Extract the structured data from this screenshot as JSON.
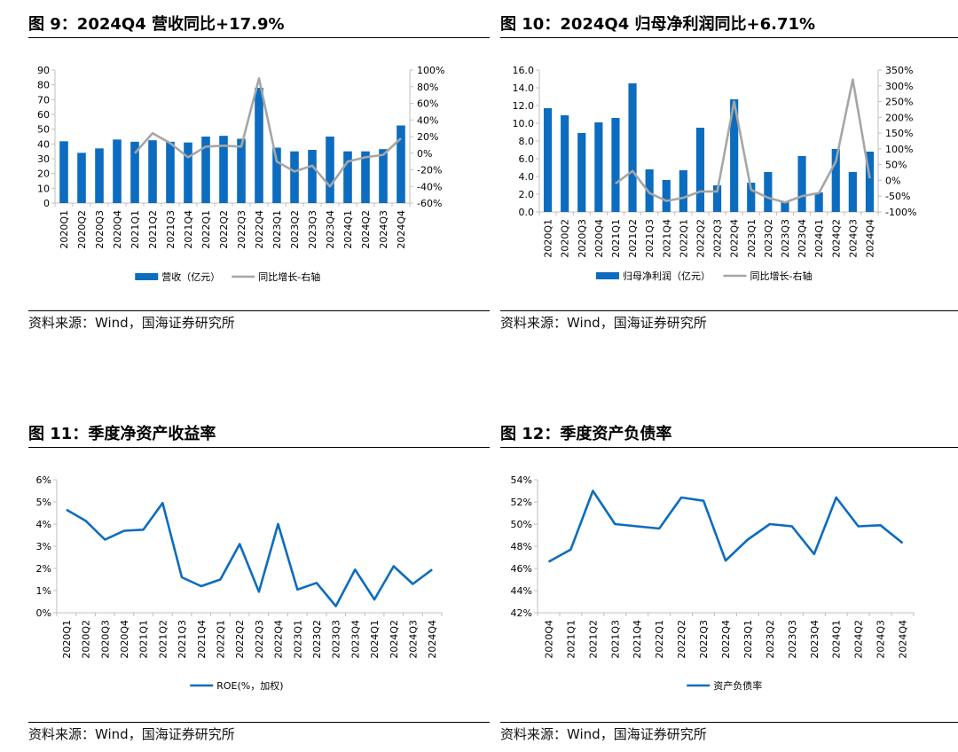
{
  "charts": [
    {
      "title": "图 9：2024Q4 营收同比+17.9%",
      "source": "资料来源：Wind，国海证券研究所",
      "chart_data": {
        "type": "bar",
        "categories": [
          "2020Q1",
          "2020Q2",
          "2020Q3",
          "2020Q4",
          "2021Q1",
          "2021Q2",
          "2021Q3",
          "2021Q4",
          "2022Q1",
          "2022Q2",
          "2022Q3",
          "2022Q4",
          "2023Q1",
          "2023Q2",
          "2023Q3",
          "2023Q4",
          "2024Q1",
          "2024Q2",
          "2024Q3",
          "2024Q4"
        ],
        "series": [
          {
            "name": "营收（亿元）",
            "type": "bar",
            "axis": "left",
            "values": [
              41.8,
              34,
              37,
              43,
              41.5,
              42.5,
              41.5,
              41,
              45,
              45.5,
              43.5,
              78,
              37.5,
              35,
              36,
              45,
              35,
              35,
              36.5,
              52.5
            ]
          },
          {
            "name": "同比增长-右轴",
            "type": "line",
            "axis": "right",
            "values": [
              null,
              null,
              null,
              null,
              0,
              24,
              12,
              -5,
              8,
              9,
              8,
              90,
              -10,
              -22,
              -15,
              -40,
              -10,
              -5,
              -2,
              17.9
            ]
          }
        ],
        "yleft": {
          "min": 0,
          "max": 90,
          "step": 10,
          "ticks": [
            "0",
            "10",
            "20",
            "30",
            "40",
            "50",
            "60",
            "70",
            "80",
            "90"
          ]
        },
        "yright": {
          "min": -60,
          "max": 100,
          "step": 20,
          "ticks": [
            "-60%",
            "-40%",
            "-20%",
            "0%",
            "20%",
            "40%",
            "60%",
            "80%",
            "100%"
          ]
        },
        "legend": "bottom"
      }
    },
    {
      "title": "图 10：2024Q4 归母净利润同比+6.71%",
      "source": "资料来源：Wind，国海证券研究所",
      "chart_data": {
        "type": "bar",
        "categories": [
          "2020Q1",
          "2020Q2",
          "2020Q3",
          "2020Q4",
          "2021Q1",
          "2021Q2",
          "2021Q3",
          "2021Q4",
          "2022Q1",
          "2022Q2",
          "2022Q3",
          "2022Q4",
          "2023Q1",
          "2023Q2",
          "2023Q3",
          "2023Q4",
          "2024Q1",
          "2024Q2",
          "2024Q3",
          "2024Q4"
        ],
        "series": [
          {
            "name": "归母净利润（亿元）",
            "type": "bar",
            "axis": "left",
            "values": [
              11.7,
              10.9,
              8.9,
              10.1,
              10.6,
              14.5,
              4.8,
              3.6,
              4.7,
              9.5,
              3,
              12.7,
              3.3,
              4.5,
              1.1,
              6.3,
              2.2,
              7.1,
              4.5,
              6.8
            ]
          },
          {
            "name": "同比增长-右轴",
            "type": "line",
            "axis": "right",
            "values": [
              null,
              null,
              null,
              null,
              -10,
              30,
              -40,
              -65,
              -55,
              -35,
              -35,
              250,
              -30,
              -55,
              -70,
              -50,
              -40,
              60,
              320,
              6.71
            ]
          }
        ],
        "yleft": {
          "min": 0,
          "max": 16,
          "step": 2,
          "ticks": [
            "0.0",
            "2.0",
            "4.0",
            "6.0",
            "8.0",
            "10.0",
            "12.0",
            "14.0",
            "16.0"
          ]
        },
        "yright": {
          "min": -100,
          "max": 350,
          "step": 50,
          "ticks": [
            "-100%",
            "-50%",
            "0%",
            "50%",
            "100%",
            "150%",
            "200%",
            "250%",
            "300%",
            "350%"
          ]
        },
        "legend": "bottom"
      }
    },
    {
      "title": "图 11：季度净资产收益率",
      "source": "资料来源：Wind，国海证券研究所",
      "chart_data": {
        "type": "line",
        "categories": [
          "2020Q1",
          "2020Q2",
          "2020Q3",
          "2020Q4",
          "2021Q1",
          "2021Q2",
          "2021Q3",
          "2021Q4",
          "2022Q1",
          "2022Q2",
          "2022Q3",
          "2022Q4",
          "2023Q1",
          "2023Q2",
          "2023Q3",
          "2023Q4",
          "2024Q1",
          "2024Q2",
          "2024Q3",
          "2024Q4"
        ],
        "series": [
          {
            "name": "ROE(%，加权)",
            "type": "line",
            "axis": "left",
            "values": [
              4.65,
              4.15,
              3.3,
              3.7,
              3.75,
              4.95,
              1.6,
              1.2,
              1.5,
              3.1,
              0.95,
              4,
              1.05,
              1.35,
              0.3,
              1.95,
              0.6,
              2.1,
              1.3,
              1.95
            ]
          }
        ],
        "yleft": {
          "min": 0,
          "max": 6,
          "step": 1,
          "ticks": [
            "0%",
            "1%",
            "2%",
            "3%",
            "4%",
            "5%",
            "6%"
          ]
        },
        "legend": "bottom"
      }
    },
    {
      "title": "图 12：季度资产负债率",
      "source": "资料来源：Wind，国海证券研究所",
      "chart_data": {
        "type": "line",
        "categories": [
          "2020Q4",
          "2021Q1",
          "2021Q2",
          "2021Q3",
          "2021Q4",
          "2022Q1",
          "2022Q2",
          "2022Q3",
          "2022Q4",
          "2023Q1",
          "2023Q2",
          "2023Q3",
          "2023Q4",
          "2024Q1",
          "2024Q2",
          "2024Q3",
          "2024Q4"
        ],
        "series": [
          {
            "name": "资产负债率",
            "type": "line",
            "axis": "left",
            "values": [
              46.6,
              47.7,
              53,
              50,
              49.8,
              49.6,
              52.4,
              52.1,
              46.7,
              48.6,
              50,
              49.8,
              47.3,
              52.4,
              49.8,
              49.9,
              48.3
            ]
          }
        ],
        "yleft": {
          "min": 42,
          "max": 54,
          "step": 2,
          "ticks": [
            "42%",
            "44%",
            "46%",
            "48%",
            "50%",
            "52%",
            "54%"
          ]
        },
        "legend": "bottom"
      }
    }
  ],
  "colors": {
    "bar": "#0c6cbf",
    "line_gray": "#a6a6a6",
    "line_blue": "#0c6cbf",
    "axis": "#bfbfbf",
    "text": "#000000"
  }
}
